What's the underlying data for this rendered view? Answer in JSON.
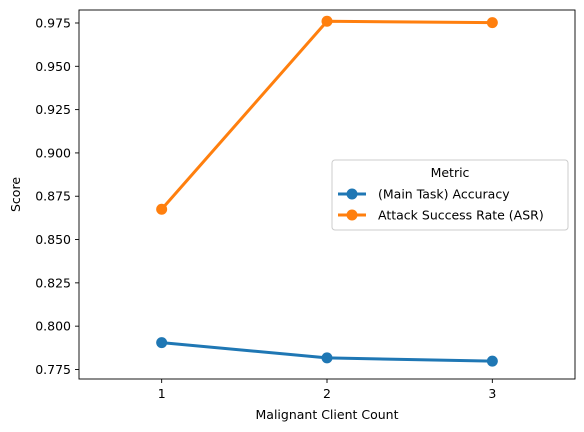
{
  "chart_data": {
    "type": "line",
    "title": "",
    "xlabel": "Malignant Client Count",
    "ylabel": "Score",
    "x": [
      "1",
      "2",
      "3"
    ],
    "ylim": [
      0.7695,
      0.9825
    ],
    "yticks": [
      0.775,
      0.8,
      0.825,
      0.85,
      0.875,
      0.9,
      0.925,
      0.95,
      0.975
    ],
    "ytick_labels": [
      "0.775",
      "0.800",
      "0.825",
      "0.850",
      "0.875",
      "0.900",
      "0.925",
      "0.950",
      "0.975"
    ],
    "grid": false,
    "legend": {
      "title": "Metric",
      "placement": "center-right"
    },
    "series": [
      {
        "name": "(Main Task) Accuracy",
        "color": "#1f77b4",
        "values": [
          0.7905,
          0.7817,
          0.7798
        ]
      },
      {
        "name": "Attack Success Rate (ASR)",
        "color": "#ff7f0e",
        "values": [
          0.8675,
          0.976,
          0.9752
        ]
      }
    ]
  }
}
